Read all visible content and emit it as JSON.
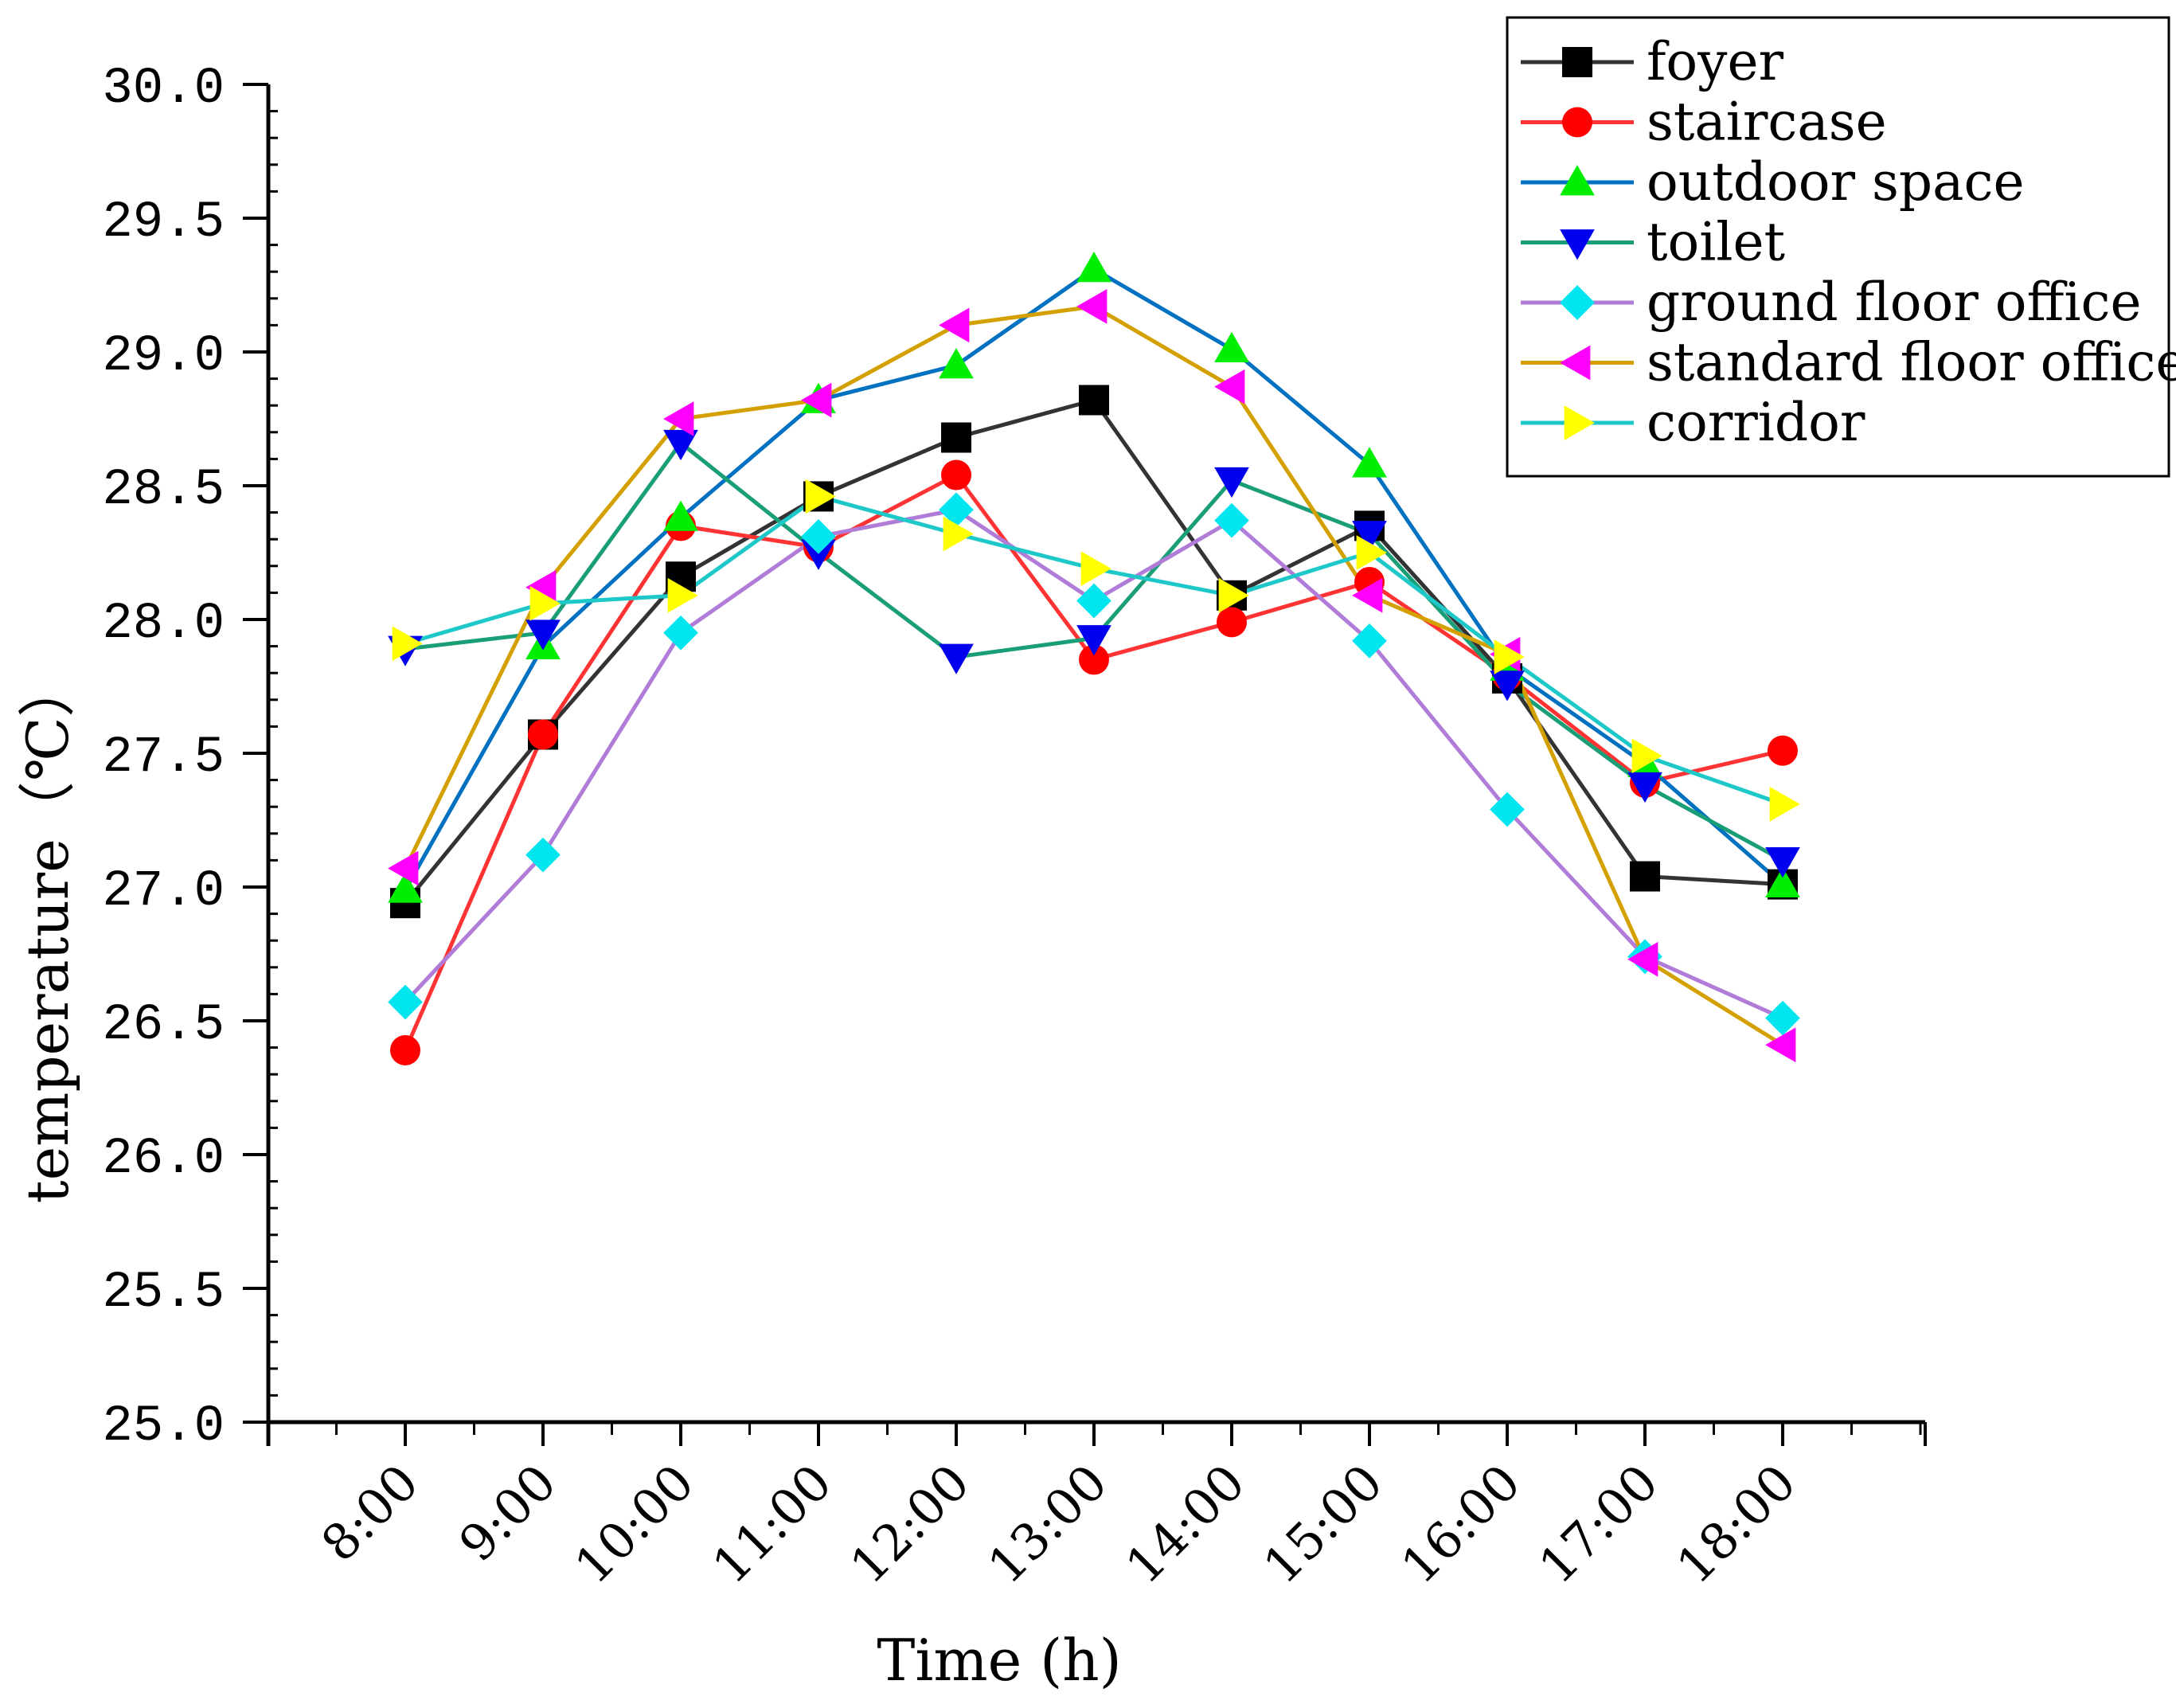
{
  "chart_data": {
    "type": "line",
    "title": "",
    "xlabel": "Time (h)",
    "ylabel": "temperature（℃）",
    "ylim": [
      25.0,
      30.0
    ],
    "yticks": [
      "25.0",
      "25.5",
      "26.0",
      "26.5",
      "27.0",
      "27.5",
      "28.0",
      "28.5",
      "29.0",
      "29.5",
      "30.0"
    ],
    "categories": [
      "8:00",
      "9:00",
      "10:00",
      "11:00",
      "12:00",
      "13:00",
      "14:00",
      "15:00",
      "16:00",
      "17:00",
      "18:00"
    ],
    "legend_position": "top-right",
    "series": [
      {
        "name": "foyer",
        "color": "#333333",
        "marker_color": "#000000",
        "marker": "square",
        "values": [
          26.94,
          27.57,
          28.16,
          28.46,
          28.68,
          28.82,
          28.09,
          28.35,
          27.78,
          27.04,
          27.01
        ]
      },
      {
        "name": "staircase",
        "color": "#ff3333",
        "marker_color": "#ff0000",
        "marker": "circle",
        "values": [
          26.39,
          27.57,
          28.35,
          28.27,
          28.54,
          27.85,
          27.99,
          28.14,
          27.79,
          27.39,
          27.51
        ]
      },
      {
        "name": "outdoor space",
        "color": "#0070c0",
        "marker_color": "#00ee00",
        "marker": "triangle-up",
        "values": [
          26.99,
          27.9,
          28.38,
          28.82,
          28.95,
          29.31,
          29.01,
          28.58,
          27.82,
          27.46,
          27.01
        ]
      },
      {
        "name": "toilet",
        "color": "#1a9e77",
        "marker_color": "#0000ee",
        "marker": "triangle-down",
        "values": [
          27.89,
          27.95,
          28.66,
          28.25,
          27.86,
          27.93,
          28.52,
          28.32,
          27.76,
          27.38,
          27.1
        ]
      },
      {
        "name": "ground floor office",
        "color": "#b07cd8",
        "marker_color": "#00e5ee",
        "marker": "diamond",
        "values": [
          26.57,
          27.12,
          27.95,
          28.31,
          28.41,
          28.07,
          28.37,
          27.92,
          27.29,
          26.74,
          26.51
        ]
      },
      {
        "name": "standard floor offices",
        "color": "#d4a000",
        "marker_color": "#ff00ff",
        "marker": "triangle-left",
        "values": [
          27.07,
          28.12,
          28.75,
          28.82,
          29.1,
          29.17,
          28.87,
          28.09,
          27.87,
          26.73,
          26.41
        ]
      },
      {
        "name": "corridor",
        "color": "#1ec8c8",
        "marker_color": "#ffff00",
        "marker": "triangle-right",
        "values": [
          27.91,
          28.06,
          28.09,
          28.46,
          28.32,
          28.19,
          28.09,
          28.25,
          27.86,
          27.49,
          27.31
        ]
      }
    ]
  }
}
